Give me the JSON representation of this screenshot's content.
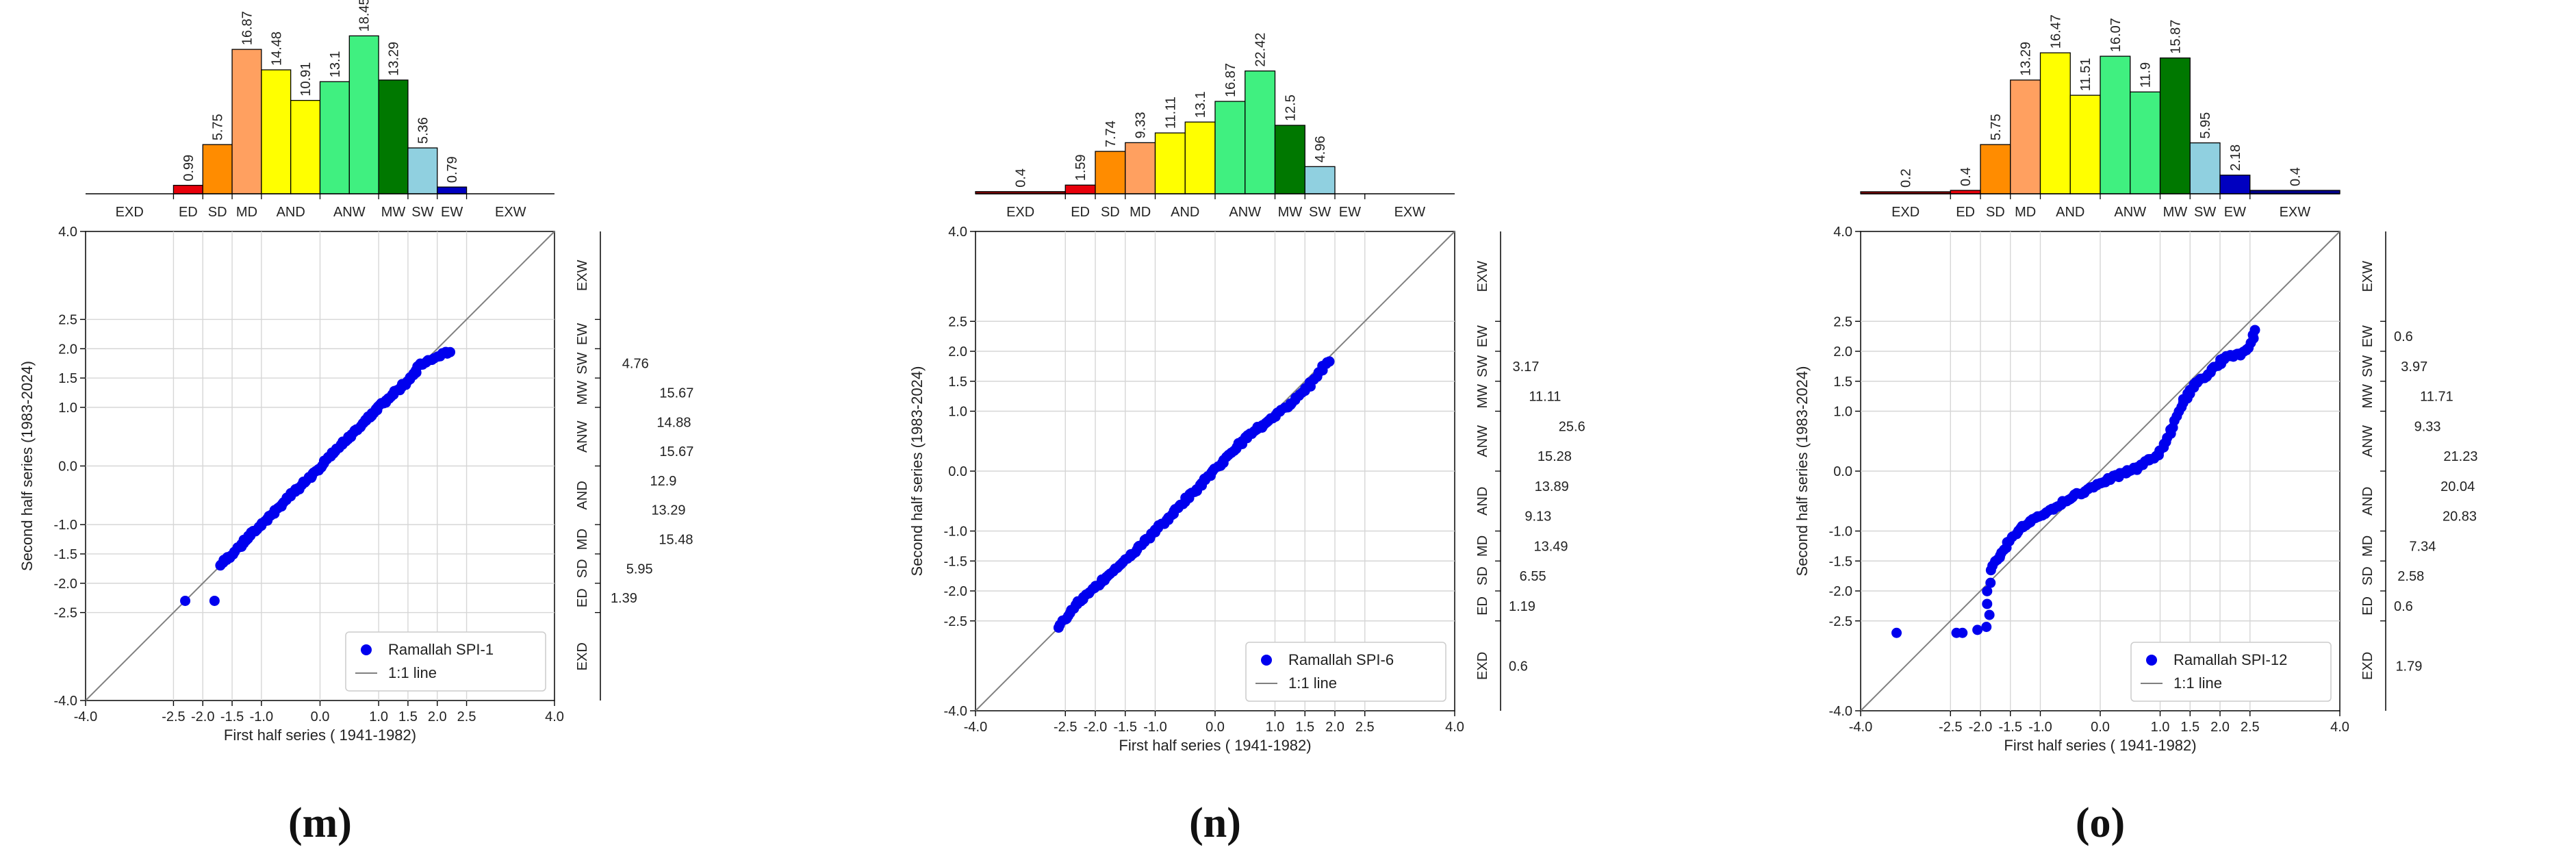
{
  "colors": {
    "EXD": "#8b0000",
    "ED": "#e8000b",
    "SD": "#ff8c00",
    "MD": "#ffa060",
    "AND": "#ffff00",
    "ANW": "#40f080",
    "MW": "#007800",
    "SW": "#90d0e0",
    "EW": "#0000c0",
    "EXW": "#00008b",
    "points": "#0000ee",
    "line": "#808080"
  },
  "class_labels": [
    "EXD",
    "ED",
    "SD",
    "MD",
    "AND",
    "ANW",
    "MW",
    "SW",
    "EW",
    "EXW"
  ],
  "chart_data": [
    {
      "type": "scatter",
      "panel_label": "(m)",
      "series_name": "Ramallah SPI-1",
      "line_name": "1:1 line",
      "xlabel": "First half series ( 1941-1982)",
      "ylabel": "Second half series (1983-2024)",
      "xlim": [
        -4.0,
        4.0
      ],
      "ylim": [
        -4.0,
        4.0
      ],
      "ticks": [
        "-4.0",
        "-2.5",
        "-2.0",
        "-1.5",
        "-1.0",
        "0.0",
        "1.0",
        "1.5",
        "2.0",
        "2.5",
        "4.0"
      ],
      "top_hist": [
        {
          "class": "EXD",
          "value": null
        },
        {
          "class": "ED",
          "value": 0.99
        },
        {
          "class": "SD",
          "value": 5.75
        },
        {
          "class": "MD",
          "value": 16.87
        },
        {
          "class": "AND",
          "value": 14.48
        },
        {
          "class": "AND",
          "value": 10.91
        },
        {
          "class": "ANW",
          "value": 13.1
        },
        {
          "class": "ANW",
          "value": 18.45
        },
        {
          "class": "MW",
          "value": 13.29
        },
        {
          "class": "SW",
          "value": 5.36
        },
        {
          "class": "EW",
          "value": 0.79
        },
        {
          "class": "EXW",
          "value": null
        }
      ],
      "right_hist": [
        {
          "class": "EXW",
          "value": null
        },
        {
          "class": "EW",
          "value": null
        },
        {
          "class": "SW",
          "value": 4.76
        },
        {
          "class": "MW",
          "value": 15.67
        },
        {
          "class": "ANW",
          "value": 14.88
        },
        {
          "class": "ANW",
          "value": 15.67
        },
        {
          "class": "AND",
          "value": 12.9
        },
        {
          "class": "AND",
          "value": 13.29
        },
        {
          "class": "MD",
          "value": 15.48
        },
        {
          "class": "SD",
          "value": 5.95
        },
        {
          "class": "ED",
          "value": 1.39
        },
        {
          "class": "EXD",
          "value": null
        }
      ],
      "outliers": [
        [
          -2.3,
          -2.3
        ],
        [
          -1.8,
          -2.3
        ]
      ],
      "curve": [
        [
          -1.7,
          -1.7
        ],
        [
          -1.0,
          -1.0
        ],
        [
          0.0,
          -0.02
        ],
        [
          1.0,
          1.0
        ],
        [
          1.6,
          1.55
        ],
        [
          1.7,
          1.72
        ],
        [
          2.2,
          1.95
        ]
      ]
    },
    {
      "type": "scatter",
      "panel_label": "(n)",
      "series_name": "Ramallah SPI-6",
      "line_name": "1:1 line",
      "xlabel": "First half series ( 1941-1982)",
      "ylabel": "Second half series (1983-2024)",
      "xlim": [
        -4.0,
        4.0
      ],
      "ylim": [
        -4.0,
        4.0
      ],
      "ticks": [
        "-4.0",
        "-2.5",
        "-2.0",
        "-1.5",
        "-1.0",
        "0.0",
        "1.0",
        "1.5",
        "2.0",
        "2.5",
        "4.0"
      ],
      "top_hist": [
        {
          "class": "EXD",
          "value": 0.4
        },
        {
          "class": "ED",
          "value": 1.59
        },
        {
          "class": "SD",
          "value": 7.74
        },
        {
          "class": "MD",
          "value": 9.33
        },
        {
          "class": "AND",
          "value": 11.11
        },
        {
          "class": "AND",
          "value": 13.1
        },
        {
          "class": "ANW",
          "value": 16.87
        },
        {
          "class": "ANW",
          "value": 22.42
        },
        {
          "class": "MW",
          "value": 12.5
        },
        {
          "class": "SW",
          "value": 4.96
        },
        {
          "class": "EW",
          "value": null
        },
        {
          "class": "EXW",
          "value": null
        }
      ],
      "right_hist": [
        {
          "class": "EXW",
          "value": null
        },
        {
          "class": "EW",
          "value": null
        },
        {
          "class": "SW",
          "value": 3.17
        },
        {
          "class": "MW",
          "value": 11.11
        },
        {
          "class": "ANW",
          "value": 25.6
        },
        {
          "class": "ANW",
          "value": 15.28
        },
        {
          "class": "AND",
          "value": 13.89
        },
        {
          "class": "AND",
          "value": 9.13
        },
        {
          "class": "MD",
          "value": 13.49
        },
        {
          "class": "SD",
          "value": 6.55
        },
        {
          "class": "ED",
          "value": 1.19
        },
        {
          "class": "EXD",
          "value": 0.6
        }
      ],
      "outliers": [],
      "curve": [
        [
          -2.6,
          -2.6
        ],
        [
          -2.3,
          -2.2
        ],
        [
          -1.5,
          -1.5
        ],
        [
          -0.5,
          -0.5
        ],
        [
          0.5,
          0.55
        ],
        [
          1.3,
          1.15
        ],
        [
          1.5,
          1.35
        ],
        [
          1.9,
          1.85
        ]
      ]
    },
    {
      "type": "scatter",
      "panel_label": "(o)",
      "series_name": "Ramallah SPI-12",
      "line_name": "1:1 line",
      "xlabel": "First half series ( 1941-1982)",
      "ylabel": "Second half series (1983-2024)",
      "xlim": [
        -4.0,
        4.0
      ],
      "ylim": [
        -4.0,
        4.0
      ],
      "ticks": [
        "-4.0",
        "-2.5",
        "-2.0",
        "-1.5",
        "-1.0",
        "0.0",
        "1.0",
        "1.5",
        "2.0",
        "2.5",
        "4.0"
      ],
      "top_hist": [
        {
          "class": "EXD",
          "value": 0.2
        },
        {
          "class": "ED",
          "value": 0.4
        },
        {
          "class": "SD",
          "value": 5.75
        },
        {
          "class": "MD",
          "value": 13.29
        },
        {
          "class": "AND",
          "value": 16.47
        },
        {
          "class": "AND",
          "value": 11.51
        },
        {
          "class": "ANW",
          "value": 16.07
        },
        {
          "class": "ANW",
          "value": 11.9
        },
        {
          "class": "MW",
          "value": 15.87
        },
        {
          "class": "SW",
          "value": 5.95
        },
        {
          "class": "EW",
          "value": 2.18
        },
        {
          "class": "EXW",
          "value": 0.4
        }
      ],
      "right_hist": [
        {
          "class": "EXW",
          "value": null
        },
        {
          "class": "EW",
          "value": 0.6
        },
        {
          "class": "SW",
          "value": 3.97
        },
        {
          "class": "MW",
          "value": 11.71
        },
        {
          "class": "ANW",
          "value": 9.33
        },
        {
          "class": "ANW",
          "value": 21.23
        },
        {
          "class": "AND",
          "value": 20.04
        },
        {
          "class": "AND",
          "value": 20.83
        },
        {
          "class": "MD",
          "value": 7.34
        },
        {
          "class": "SD",
          "value": 2.58
        },
        {
          "class": "ED",
          "value": 0.6
        },
        {
          "class": "EXD",
          "value": 1.79
        }
      ],
      "outliers": [
        [
          -3.4,
          -2.7
        ],
        [
          -2.4,
          -2.7
        ],
        [
          -2.3,
          -2.7
        ],
        [
          -2.05,
          -2.65
        ],
        [
          -1.9,
          -2.6
        ],
        [
          -1.85,
          -2.4
        ]
      ],
      "curve": [
        [
          -1.9,
          -2.2
        ],
        [
          -1.8,
          -1.6
        ],
        [
          -1.4,
          -1.0
        ],
        [
          -1.0,
          -0.75
        ],
        [
          -0.5,
          -0.45
        ],
        [
          0.0,
          -0.2
        ],
        [
          0.6,
          0.05
        ],
        [
          1.0,
          0.3
        ],
        [
          1.2,
          0.7
        ],
        [
          1.4,
          1.2
        ],
        [
          1.6,
          1.45
        ],
        [
          1.7,
          1.55
        ],
        [
          2.1,
          1.9
        ],
        [
          2.35,
          1.95
        ],
        [
          2.5,
          2.1
        ],
        [
          2.6,
          2.35
        ]
      ]
    }
  ]
}
